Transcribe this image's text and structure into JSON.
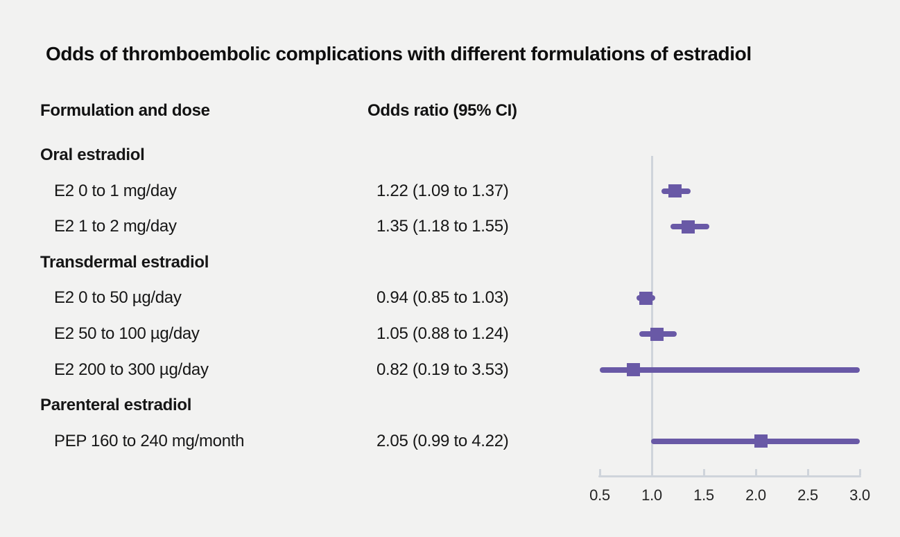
{
  "title": "Odds of thromboembolic complications with different formulations of estradiol",
  "columns": {
    "formulation": "Formulation and dose",
    "odds": "Odds ratio (95% CI)"
  },
  "chart_data": {
    "type": "forest",
    "title": "Odds of thromboembolic complications with different formulations of estradiol",
    "x_axis": {
      "ticks": [
        0.5,
        1.0,
        1.5,
        2.0,
        2.5,
        3.0
      ],
      "tick_labels": [
        "0.5",
        "1.0",
        "1.5",
        "2.0",
        "2.5",
        "3.0"
      ],
      "xlim": [
        0.5,
        3.0
      ],
      "reference_line": 1.0
    },
    "groups": [
      {
        "label": "Oral estradiol",
        "items": [
          {
            "label": "E2 0 to 1 mg/day",
            "or": 1.22,
            "ci_low": 1.09,
            "ci_high": 1.37,
            "display": "1.22 (1.09 to 1.37)"
          },
          {
            "label": "E2 1 to 2 mg/day",
            "or": 1.35,
            "ci_low": 1.18,
            "ci_high": 1.55,
            "display": "1.35 (1.18 to 1.55)"
          }
        ]
      },
      {
        "label": "Transdermal estradiol",
        "items": [
          {
            "label": "E2 0 to 50 µg/day",
            "or": 0.94,
            "ci_low": 0.85,
            "ci_high": 1.03,
            "display": "0.94 (0.85 to 1.03)"
          },
          {
            "label": "E2 50 to 100 µg/day",
            "or": 1.05,
            "ci_low": 0.88,
            "ci_high": 1.24,
            "display": "1.05 (0.88 to 1.24)"
          },
          {
            "label": "E2 200 to 300 µg/day",
            "or": 0.82,
            "ci_low": 0.19,
            "ci_high": 3.53,
            "display": "0.82 (0.19 to 3.53)"
          }
        ]
      },
      {
        "label": "Parenteral estradiol",
        "items": [
          {
            "label": "PEP 160 to 240 mg/month",
            "or": 2.05,
            "ci_low": 0.99,
            "ci_high": 4.22,
            "display": "2.05 (0.99 to 4.22)"
          }
        ]
      }
    ],
    "legend": null,
    "grid": false,
    "colors": {
      "marker": "#6959a6",
      "axis": "#cfd4db",
      "background": "#f2f2f1",
      "text": "#161616"
    }
  }
}
